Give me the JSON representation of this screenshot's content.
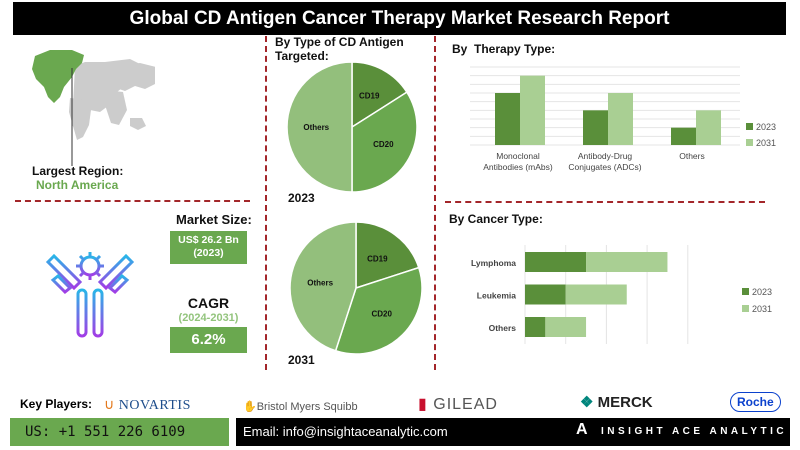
{
  "title": "Global CD Antigen Cancer Therapy Market Research Report",
  "region": {
    "label": "Largest Region:",
    "value": "North America"
  },
  "market_size": {
    "label": "Market Size:",
    "value": "US$ 26.2 Bn",
    "year": "(2023)"
  },
  "cagr": {
    "label": "CAGR",
    "period": "(2024-2031)",
    "value": "6.2%"
  },
  "colors": {
    "dark_green": "#5a8f3a",
    "mid_green": "#6aa84f",
    "light_green": "#93c47d",
    "lighter_green": "#a9cf93",
    "accent_red": "#a3262a"
  },
  "chart_data": [
    {
      "type": "pie",
      "title": "By Type of CD Antigen Targeted:",
      "year": "2023",
      "labels": [
        "CD19",
        "CD20",
        "Others"
      ],
      "values": [
        16,
        34,
        50
      ]
    },
    {
      "type": "pie",
      "year": "2031",
      "labels": [
        "CD19",
        "CD20",
        "Others"
      ],
      "values": [
        20,
        35,
        45
      ]
    },
    {
      "type": "bar",
      "title": "By  Therapy Type:",
      "categories": [
        "Monoclonal Antibodies (mAbs)",
        "Antibody-Drug Conjugates (ADCs)",
        "Others"
      ],
      "series": [
        {
          "name": "2023",
          "values": [
            6,
            4,
            2
          ]
        },
        {
          "name": "2031",
          "values": [
            8,
            6,
            4
          ]
        }
      ],
      "ylim": [
        0,
        9
      ],
      "grid": true,
      "legend": "right"
    },
    {
      "type": "bar",
      "orientation": "horizontal",
      "stacked": true,
      "title": "By Cancer Type:",
      "categories": [
        "Lymphoma",
        "Leukemia",
        "Others"
      ],
      "series": [
        {
          "name": "2023",
          "values": [
            1.5,
            1.0,
            0.5
          ]
        },
        {
          "name": "2031",
          "values": [
            2.0,
            1.5,
            1.0
          ]
        }
      ],
      "xlim": [
        0,
        4
      ],
      "grid": true,
      "legend": "right"
    }
  ],
  "footer": {
    "key_players_label": "Key Players:",
    "players": [
      "NOVARTIS",
      "Bristol Myers Squibb",
      "GILEAD",
      "MERCK",
      "Roche"
    ],
    "phone": "US: +1 551 226 6109",
    "email": "Email: info@insightaceanalytic.com",
    "brand": "INSIGHT ACE ANALYTIC"
  }
}
